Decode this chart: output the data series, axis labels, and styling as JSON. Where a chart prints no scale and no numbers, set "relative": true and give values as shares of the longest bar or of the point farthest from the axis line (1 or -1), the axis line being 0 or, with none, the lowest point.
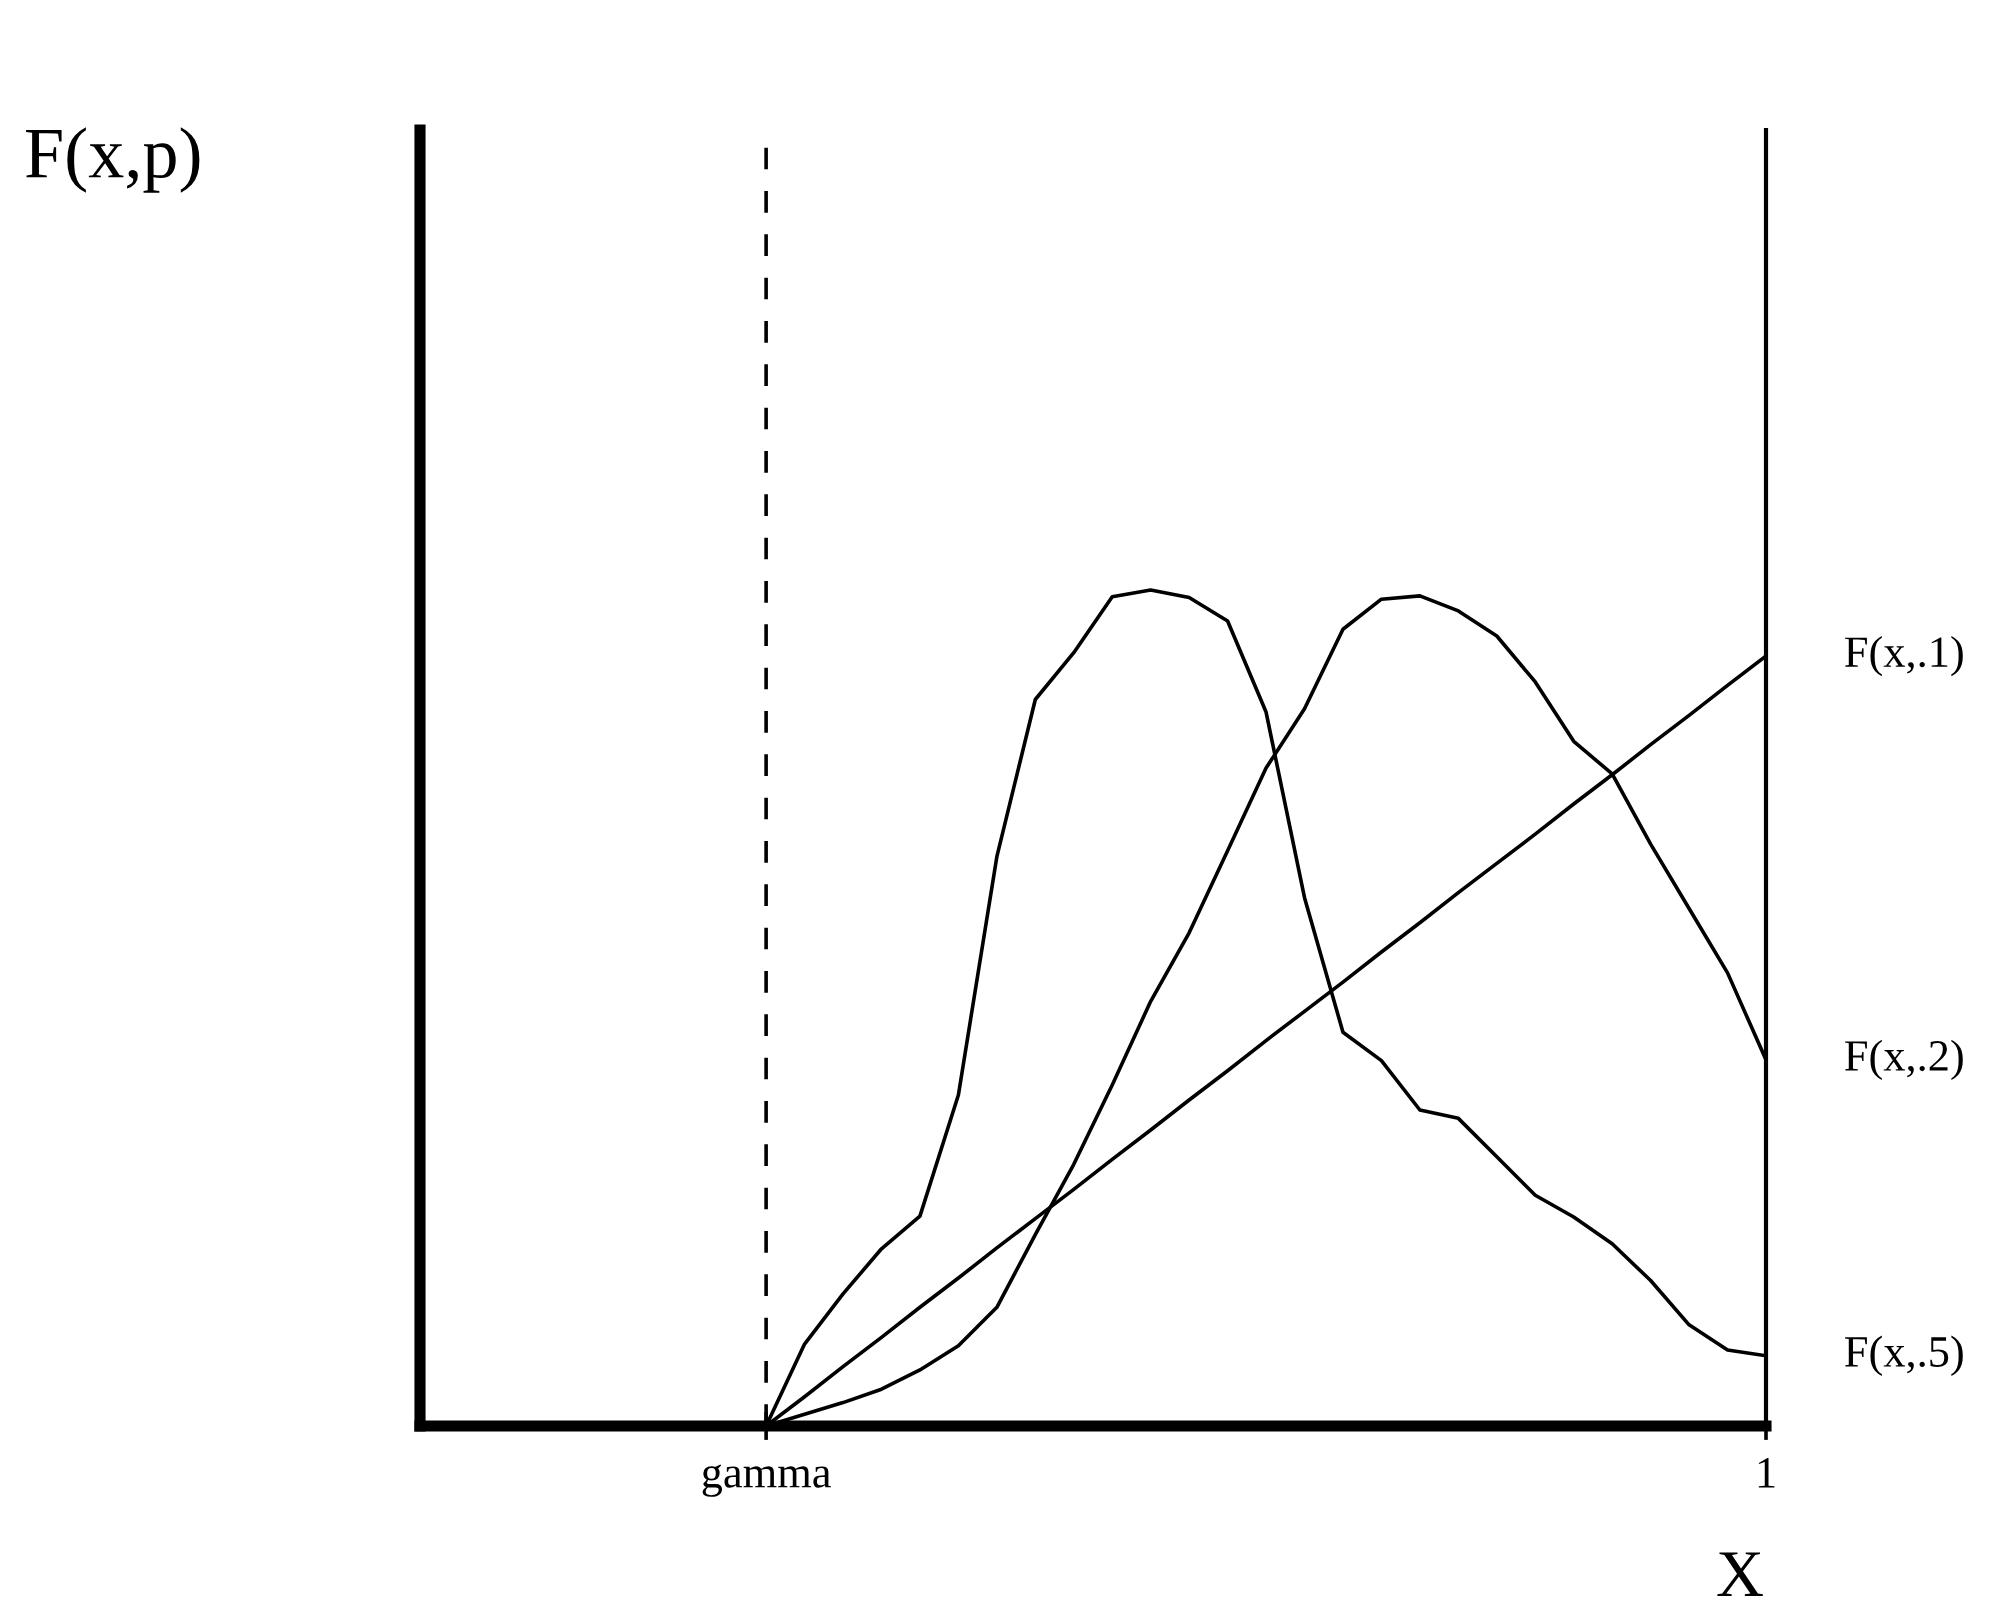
{
  "chart_data": {
    "type": "line",
    "relative": true,
    "annotations": [
      "F(x,p)"
    ],
    "xlabel": "X",
    "categories": [
      null,
      null,
      null,
      null,
      null,
      null,
      null,
      null,
      null,
      "gamma",
      null,
      null,
      null,
      null,
      null,
      null,
      null,
      null,
      null,
      null,
      null,
      null,
      null,
      null,
      null,
      null,
      null,
      null,
      null,
      null,
      null,
      null,
      null,
      null,
      null,
      "1"
    ],
    "marker": "none",
    "line_style": "solid",
    "ref_lines": [
      {
        "axis": "x",
        "value": "gamma",
        "color": "#000000",
        "line_style": "dashed"
      }
    ],
    "series": [
      {
        "name": "F(x,.1)",
        "color": "#000000",
        "values": [
          null,
          null,
          null,
          null,
          null,
          null,
          null,
          null,
          null,
          0,
          0.035,
          0.071,
          0.106,
          0.142,
          0.177,
          0.213,
          0.248,
          0.283,
          0.319,
          0.354,
          0.39,
          0.425,
          0.461,
          0.496,
          0.531,
          0.567,
          0.602,
          0.638,
          0.673,
          0.708,
          0.744,
          0.779,
          0.815,
          0.85,
          0.886,
          0.921
        ]
      },
      {
        "name": "F(x,.2)",
        "color": "#000000",
        "values": [
          null,
          null,
          null,
          null,
          null,
          null,
          null,
          null,
          null,
          0,
          0.014,
          0.028,
          0.044,
          0.067,
          0.096,
          0.142,
          0.229,
          0.313,
          0.408,
          0.508,
          0.59,
          0.688,
          0.787,
          0.858,
          0.953,
          0.989,
          0.993,
          0.975,
          0.945,
          0.89,
          0.819,
          0.78,
          0.696,
          0.619,
          0.542,
          0.438
        ]
      },
      {
        "name": "F(x,.5)",
        "color": "#000000",
        "values": [
          null,
          null,
          null,
          null,
          null,
          null,
          null,
          null,
          null,
          0,
          0.098,
          0.158,
          0.212,
          0.251,
          0.396,
          0.681,
          0.869,
          0.925,
          0.992,
          1.0,
          0.991,
          0.963,
          0.854,
          0.632,
          0.471,
          0.437,
          0.378,
          0.368,
          0.322,
          0.276,
          0.25,
          0.218,
          0.174,
          0.121,
          0.091,
          0.084
        ]
      }
    ]
  }
}
